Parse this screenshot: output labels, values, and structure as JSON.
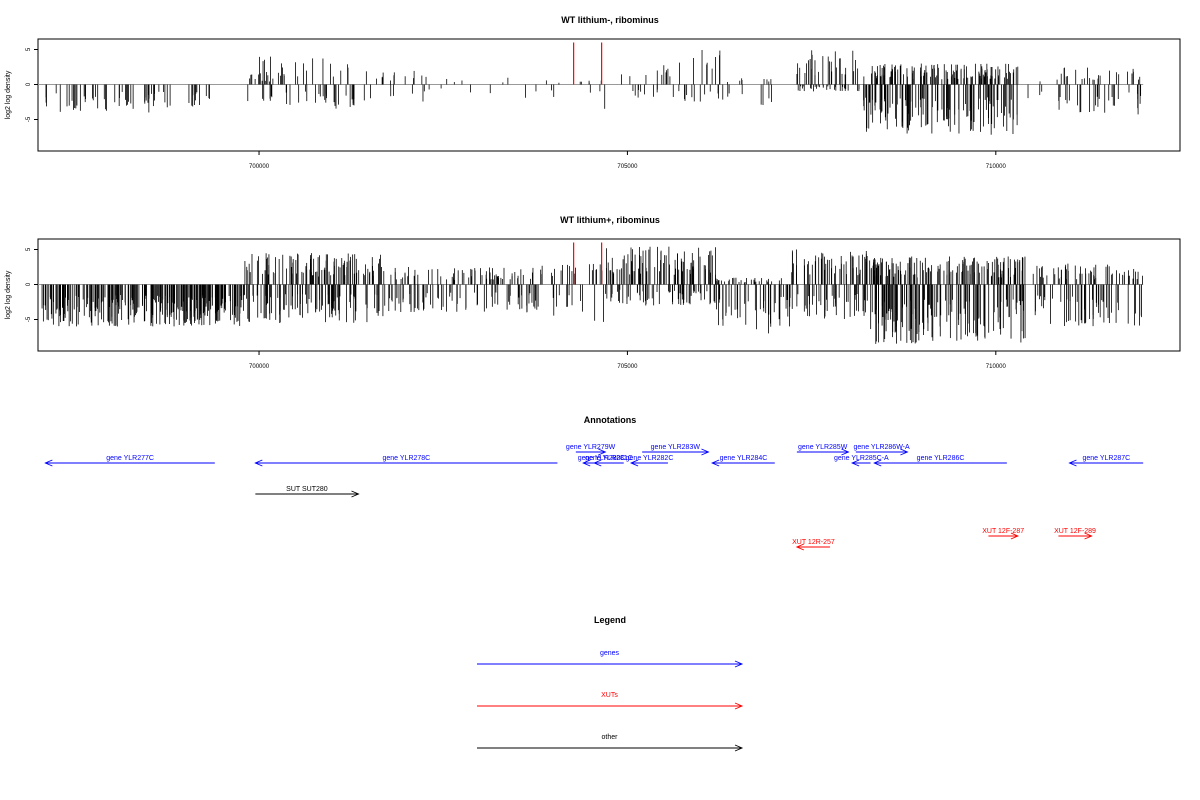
{
  "chart_data": [
    {
      "type": "bar",
      "title": "WT lithium-, ribominus",
      "ylabel": "log2 log density",
      "xlim": [
        697000,
        712500
      ],
      "ylim": [
        -9.5,
        6.5
      ],
      "x_ticks": [
        700000,
        705000,
        710000
      ],
      "x_tick_labels": [
        "700000",
        "705000",
        "710000"
      ],
      "y_ticks": [
        5,
        0,
        -5
      ],
      "y_tick_labels": [
        "5",
        "0",
        "-5"
      ],
      "baseline": {
        "from": 697000,
        "to": 712000
      },
      "markers": {
        "color": "#ff0000",
        "x": [
          704270,
          704650
        ],
        "y": [
          0,
          6
        ]
      },
      "series": [
        {
          "segments": [
            {
              "from": 697100,
              "to": 698800,
              "min": -4,
              "max": 0,
              "density": 0.4
            },
            {
              "from": 699000,
              "to": 699400,
              "min": -3.2,
              "max": 0,
              "density": 0.4
            },
            {
              "from": 699700,
              "to": 700200,
              "min": -3,
              "max": 1.5,
              "density": 0.35
            },
            {
              "from": 700000,
              "to": 701300,
              "min": -3.5,
              "max": 4,
              "density": 0.55
            },
            {
              "from": 701400,
              "to": 702300,
              "min": -2.5,
              "max": 2,
              "density": 0.3
            },
            {
              "from": 702300,
              "to": 703500,
              "min": -1.5,
              "max": 1,
              "density": 0.1
            },
            {
              "from": 703600,
              "to": 704100,
              "min": -3,
              "max": 1,
              "density": 0.15
            },
            {
              "from": 704350,
              "to": 704700,
              "min": -3.8,
              "max": 0.8,
              "density": 0.3
            },
            {
              "from": 704900,
              "to": 705700,
              "min": -2,
              "max": 3,
              "density": 0.35
            },
            {
              "from": 705700,
              "to": 706300,
              "min": -2.5,
              "max": 5,
              "density": 0.45
            },
            {
              "from": 706300,
              "to": 707000,
              "min": -3,
              "max": 1,
              "density": 0.3
            },
            {
              "from": 707300,
              "to": 708200,
              "min": -1,
              "max": 5,
              "density": 0.9
            },
            {
              "from": 708200,
              "to": 710300,
              "min": -7.2,
              "max": 3,
              "density": 1.6
            },
            {
              "from": 710400,
              "to": 710700,
              "min": -2,
              "max": 1,
              "density": 0.2
            },
            {
              "from": 710800,
              "to": 712000,
              "min": -4.5,
              "max": 2.5,
              "density": 0.6
            }
          ]
        }
      ]
    },
    {
      "type": "bar",
      "title": "WT lithium+, ribominus",
      "ylabel": "log2 log density",
      "xlim": [
        697000,
        712500
      ],
      "ylim": [
        -9.5,
        6.5
      ],
      "x_ticks": [
        700000,
        705000,
        710000
      ],
      "x_tick_labels": [
        "700000",
        "705000",
        "710000"
      ],
      "y_ticks": [
        5,
        0,
        -5
      ],
      "y_tick_labels": [
        "5",
        "0",
        "-5"
      ],
      "baseline": {
        "from": 697000,
        "to": 712000
      },
      "markers": {
        "color": "#ff0000",
        "x": [
          704270,
          704650
        ],
        "y": [
          0,
          6
        ]
      },
      "series": [
        {
          "segments": [
            {
              "from": 697050,
              "to": 699800,
              "min": -6,
              "max": 0,
              "density": 1.4
            },
            {
              "from": 699800,
              "to": 701700,
              "min": -5.5,
              "max": 4.5,
              "density": 1.4
            },
            {
              "from": 701700,
              "to": 703800,
              "min": -4,
              "max": 2.5,
              "density": 0.9
            },
            {
              "from": 703800,
              "to": 704700,
              "min": -5.5,
              "max": 3,
              "density": 0.5
            },
            {
              "from": 704700,
              "to": 706200,
              "min": -3,
              "max": 5.5,
              "density": 1.3
            },
            {
              "from": 706200,
              "to": 707200,
              "min": -7,
              "max": 1,
              "density": 1.0
            },
            {
              "from": 707200,
              "to": 708300,
              "min": -5,
              "max": 5,
              "density": 1.2
            },
            {
              "from": 708300,
              "to": 710400,
              "min": -8.5,
              "max": 4,
              "density": 1.8
            },
            {
              "from": 710500,
              "to": 712000,
              "min": -6,
              "max": 3,
              "density": 1.0
            }
          ]
        }
      ]
    }
  ],
  "annotations": {
    "title": "Annotations",
    "genes_color": "#0000ff",
    "xut_color": "#ff0000",
    "other_color": "#000000",
    "features": [
      {
        "label": "gene YLR277C",
        "start": 697100,
        "end": 699400,
        "strand": "-",
        "row": 0,
        "color": "#0000ff"
      },
      {
        "label": "gene YLR278C",
        "start": 699950,
        "end": 704050,
        "strand": "-",
        "row": 0,
        "color": "#0000ff"
      },
      {
        "label": "gene YLR279W",
        "start": 704300,
        "end": 704700,
        "strand": "+",
        "row": 1,
        "color": "#0000ff"
      },
      {
        "label": "gene YLR280C",
        "start": 704400,
        "end": 704900,
        "strand": "-",
        "row": 0,
        "color": "#0000ff"
      },
      {
        "label": "gene YLR281C",
        "start": 704550,
        "end": 704950,
        "strand": "-",
        "row": 0,
        "color": "#0000ff"
      },
      {
        "label": "gene YLR282C",
        "start": 705050,
        "end": 705550,
        "strand": "-",
        "row": 0,
        "color": "#0000ff"
      },
      {
        "label": "gene YLR283W",
        "start": 705200,
        "end": 706100,
        "strand": "+",
        "row": 1,
        "color": "#0000ff"
      },
      {
        "label": "gene YLR284C",
        "start": 706150,
        "end": 707000,
        "strand": "-",
        "row": 0,
        "color": "#0000ff"
      },
      {
        "label": "gene YLR285W",
        "start": 707300,
        "end": 708000,
        "strand": "+",
        "row": 1,
        "color": "#0000ff"
      },
      {
        "label": "gene YLR285C-A",
        "start": 708050,
        "end": 708300,
        "strand": "-",
        "row": 0,
        "color": "#0000ff"
      },
      {
        "label": "gene YLR286W-A",
        "start": 708100,
        "end": 708800,
        "strand": "+",
        "row": 1,
        "color": "#0000ff"
      },
      {
        "label": "gene YLR286C",
        "start": 708350,
        "end": 710150,
        "strand": "-",
        "row": 0,
        "color": "#0000ff"
      },
      {
        "label": "gene YLR287C",
        "start": 711000,
        "end": 712000,
        "strand": "-",
        "row": 0,
        "color": "#0000ff"
      },
      {
        "label": "SUT SUT280",
        "start": 699950,
        "end": 701350,
        "strand": "+",
        "row": 2,
        "color": "#000000"
      },
      {
        "label": "XUT 12R-257",
        "start": 707300,
        "end": 707750,
        "strand": "-",
        "row": 4,
        "color": "#ff0000"
      },
      {
        "label": "XUT 12F-287",
        "start": 709900,
        "end": 710300,
        "strand": "+",
        "row": 3,
        "color": "#ff0000"
      },
      {
        "label": "XUT 12F-289",
        "start": 710850,
        "end": 711300,
        "strand": "+",
        "row": 3,
        "color": "#ff0000"
      }
    ]
  },
  "legend": {
    "title": "Legend",
    "items": [
      {
        "label": "genes",
        "color": "#0000ff"
      },
      {
        "label": "XUTs",
        "color": "#ff0000"
      },
      {
        "label": "other",
        "color": "#000000"
      }
    ]
  }
}
